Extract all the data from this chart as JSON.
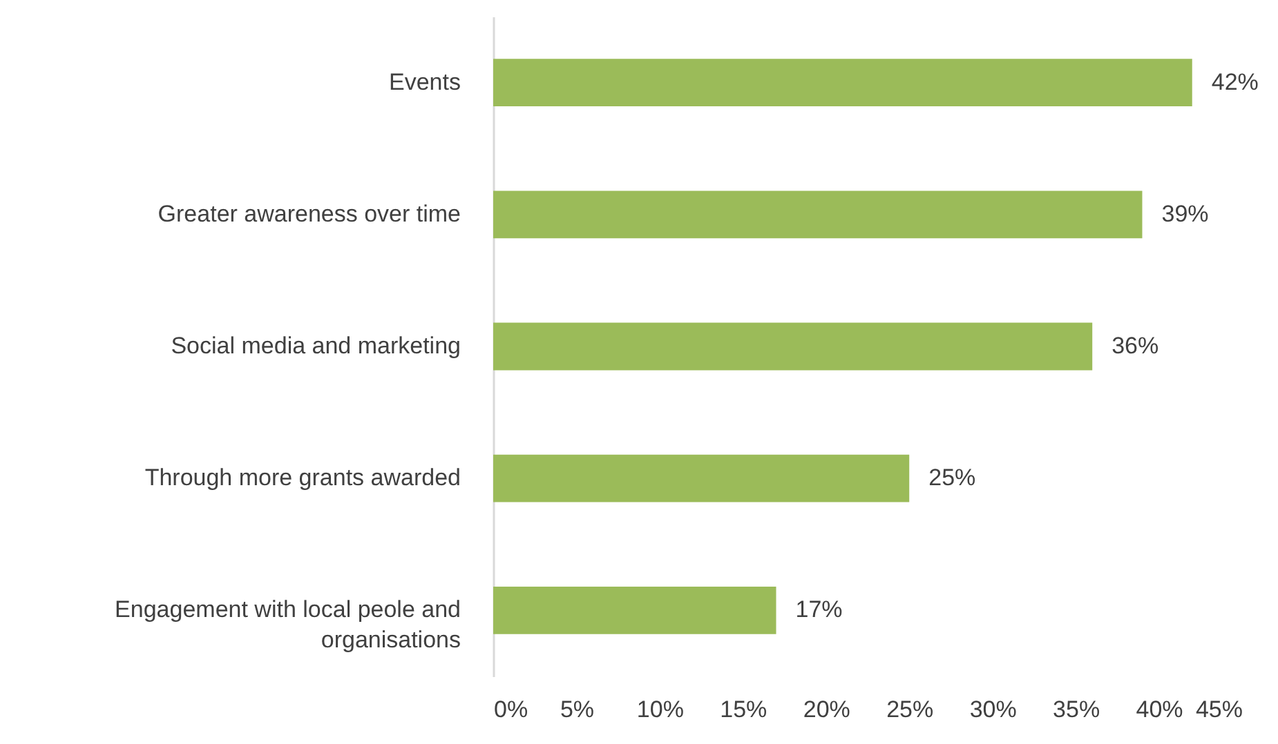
{
  "chart_data": {
    "type": "bar",
    "orientation": "horizontal",
    "categories": [
      "Events",
      "Greater awareness over time",
      "Social media and marketing",
      "Through more grants awarded",
      "Engagement with local peole and organisations"
    ],
    "values": [
      42,
      39,
      36,
      25,
      17
    ],
    "value_labels": [
      "42%",
      "39%",
      "36%",
      "25%",
      "17%"
    ],
    "color": "#9bbb59",
    "xlim": [
      0,
      45
    ],
    "xticks": [
      {
        "value": 0,
        "label": "0%"
      },
      {
        "value": 5,
        "label": "5%"
      },
      {
        "value": 10,
        "label": "10%"
      },
      {
        "value": 15,
        "label": "15%"
      },
      {
        "value": 20,
        "label": "20%"
      },
      {
        "value": 25,
        "label": "25%"
      },
      {
        "value": 30,
        "label": "30%"
      },
      {
        "value": 35,
        "label": "35%"
      },
      {
        "value": 40,
        "label": "40%"
      },
      {
        "value": 45,
        "label": "45%"
      }
    ],
    "grid": false
  }
}
